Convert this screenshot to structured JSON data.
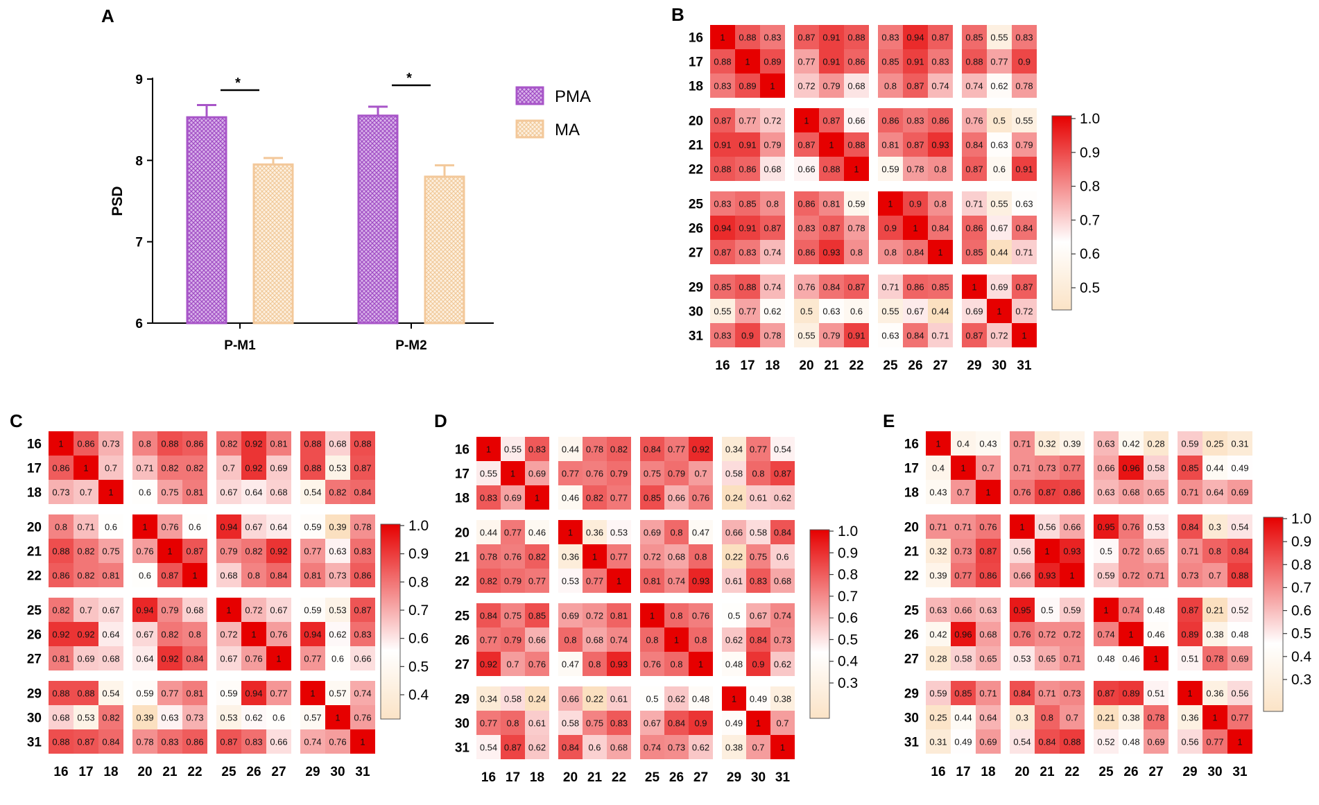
{
  "figure": {
    "panel_labels": [
      "A",
      "B",
      "C",
      "D",
      "E"
    ]
  },
  "chart_data": [
    {
      "panel": "A",
      "type": "bar",
      "categories": [
        "P-M1",
        "P-M2"
      ],
      "series": [
        {
          "name": "PMA",
          "values": [
            8.53,
            8.55
          ],
          "errors": [
            0.15,
            0.11
          ],
          "color": "#a855c8",
          "fill": "#c9a0dc"
        },
        {
          "name": "MA",
          "values": [
            7.95,
            7.8
          ],
          "errors": [
            0.08,
            0.14
          ],
          "color": "#f3c89a",
          "fill": "#fbe3c8"
        }
      ],
      "ylabel": "PSD",
      "ylim": [
        6,
        9
      ],
      "yticks": [
        "6",
        "7",
        "8",
        "9"
      ],
      "significance": [
        "*",
        "*"
      ]
    },
    {
      "panel": "B",
      "type": "heatmap",
      "labels": [
        "16",
        "17",
        "18",
        "20",
        "21",
        "22",
        "25",
        "26",
        "27",
        "29",
        "30",
        "31"
      ],
      "colorbar": {
        "range": [
          0.45,
          1.0
        ],
        "ticks": [
          "1.0",
          "0.9",
          "0.8",
          "0.7",
          "0.6",
          "0.5"
        ],
        "tick_values": [
          1.0,
          0.9,
          0.8,
          0.7,
          0.6,
          0.5
        ]
      },
      "matrix": [
        [
          1.0,
          0.88,
          0.83,
          0.87,
          0.91,
          0.88,
          0.83,
          0.94,
          0.87,
          0.85,
          0.55,
          0.83
        ],
        [
          0.88,
          1.0,
          0.89,
          0.77,
          0.91,
          0.86,
          0.85,
          0.91,
          0.83,
          0.88,
          0.77,
          0.9
        ],
        [
          0.83,
          0.89,
          1.0,
          0.72,
          0.79,
          0.68,
          0.8,
          0.87,
          0.74,
          0.74,
          0.62,
          0.78
        ],
        [
          0.87,
          0.77,
          0.72,
          1.0,
          0.87,
          0.66,
          0.86,
          0.83,
          0.86,
          0.76,
          0.5,
          0.55
        ],
        [
          0.91,
          0.91,
          0.79,
          0.87,
          1.0,
          0.88,
          0.81,
          0.87,
          0.93,
          0.84,
          0.63,
          0.79
        ],
        [
          0.88,
          0.86,
          0.68,
          0.66,
          0.88,
          1.0,
          0.59,
          0.78,
          0.8,
          0.87,
          0.6,
          0.91
        ],
        [
          0.83,
          0.85,
          0.8,
          0.86,
          0.81,
          0.59,
          1.0,
          0.9,
          0.8,
          0.71,
          0.55,
          0.63
        ],
        [
          0.94,
          0.91,
          0.87,
          0.83,
          0.87,
          0.78,
          0.9,
          1.0,
          0.84,
          0.86,
          0.67,
          0.84
        ],
        [
          0.87,
          0.83,
          0.74,
          0.86,
          0.93,
          0.8,
          0.8,
          0.84,
          1.0,
          0.85,
          0.44,
          0.71
        ],
        [
          0.85,
          0.88,
          0.74,
          0.76,
          0.84,
          0.87,
          0.71,
          0.86,
          0.85,
          1.0,
          0.69,
          0.87
        ],
        [
          0.55,
          0.77,
          0.62,
          0.5,
          0.63,
          0.6,
          0.55,
          0.67,
          0.44,
          0.69,
          1.0,
          0.72
        ],
        [
          0.83,
          0.9,
          0.78,
          0.55,
          0.79,
          0.91,
          0.63,
          0.84,
          0.71,
          0.87,
          0.72,
          1.0
        ]
      ]
    },
    {
      "panel": "C",
      "type": "heatmap",
      "labels": [
        "16",
        "17",
        "18",
        "20",
        "21",
        "22",
        "25",
        "26",
        "27",
        "29",
        "30",
        "31"
      ],
      "colorbar": {
        "range": [
          0.4,
          1.0
        ],
        "ticks": [
          "1.0",
          "0.9",
          "0.8",
          "0.7",
          "0.6",
          "0.5",
          "0.4"
        ],
        "tick_values": [
          1.0,
          0.9,
          0.8,
          0.7,
          0.6,
          0.5,
          0.4
        ]
      },
      "matrix": [
        [
          1.0,
          0.86,
          0.73,
          0.8,
          0.88,
          0.86,
          0.82,
          0.92,
          0.81,
          0.88,
          0.68,
          0.88
        ],
        [
          0.86,
          1.0,
          0.7,
          0.71,
          0.82,
          0.82,
          0.7,
          0.92,
          0.69,
          0.88,
          0.53,
          0.87
        ],
        [
          0.73,
          0.7,
          1.0,
          0.6,
          0.75,
          0.81,
          0.67,
          0.64,
          0.68,
          0.54,
          0.82,
          0.84
        ],
        [
          0.8,
          0.71,
          0.6,
          1.0,
          0.76,
          0.6,
          0.94,
          0.67,
          0.64,
          0.59,
          0.39,
          0.78
        ],
        [
          0.88,
          0.82,
          0.75,
          0.76,
          1.0,
          0.87,
          0.79,
          0.82,
          0.92,
          0.77,
          0.63,
          0.83
        ],
        [
          0.86,
          0.82,
          0.81,
          0.6,
          0.87,
          1.0,
          0.68,
          0.8,
          0.84,
          0.81,
          0.73,
          0.86
        ],
        [
          0.82,
          0.7,
          0.67,
          0.94,
          0.79,
          0.68,
          1.0,
          0.72,
          0.67,
          0.59,
          0.53,
          0.87
        ],
        [
          0.92,
          0.92,
          0.64,
          0.67,
          0.82,
          0.8,
          0.72,
          1.0,
          0.76,
          0.94,
          0.62,
          0.83
        ],
        [
          0.81,
          0.69,
          0.68,
          0.64,
          0.92,
          0.84,
          0.67,
          0.76,
          1.0,
          0.77,
          0.6,
          0.66
        ],
        [
          0.88,
          0.88,
          0.54,
          0.59,
          0.77,
          0.81,
          0.59,
          0.94,
          0.77,
          1.0,
          0.57,
          0.74
        ],
        [
          0.68,
          0.53,
          0.82,
          0.39,
          0.63,
          0.73,
          0.53,
          0.62,
          0.6,
          0.57,
          1.0,
          0.76
        ],
        [
          0.88,
          0.87,
          0.84,
          0.78,
          0.83,
          0.86,
          0.87,
          0.83,
          0.66,
          0.74,
          0.76,
          1.0
        ]
      ]
    },
    {
      "panel": "D",
      "type": "heatmap",
      "labels": [
        "16",
        "17",
        "18",
        "20",
        "21",
        "22",
        "25",
        "26",
        "27",
        "29",
        "30",
        "31"
      ],
      "colorbar": {
        "range": [
          0.25,
          1.0
        ],
        "ticks": [
          "1.0",
          "0.9",
          "0.8",
          "0.7",
          "0.6",
          "0.5",
          "0.4",
          "0.3"
        ],
        "tick_values": [
          1.0,
          0.9,
          0.8,
          0.7,
          0.6,
          0.5,
          0.4,
          0.3
        ]
      },
      "matrix": [
        [
          1.0,
          0.55,
          0.83,
          0.44,
          0.78,
          0.82,
          0.84,
          0.77,
          0.92,
          0.34,
          0.77,
          0.54
        ],
        [
          0.55,
          1.0,
          0.69,
          0.77,
          0.76,
          0.79,
          0.75,
          0.79,
          0.7,
          0.58,
          0.8,
          0.87
        ],
        [
          0.83,
          0.69,
          1.0,
          0.46,
          0.82,
          0.77,
          0.85,
          0.66,
          0.76,
          0.24,
          0.61,
          0.62
        ],
        [
          0.44,
          0.77,
          0.46,
          1.0,
          0.36,
          0.53,
          0.69,
          0.8,
          0.47,
          0.66,
          0.58,
          0.84
        ],
        [
          0.78,
          0.76,
          0.82,
          0.36,
          1.0,
          0.77,
          0.72,
          0.68,
          0.8,
          0.22,
          0.75,
          0.6
        ],
        [
          0.82,
          0.79,
          0.77,
          0.53,
          0.77,
          1.0,
          0.81,
          0.74,
          0.93,
          0.61,
          0.83,
          0.68
        ],
        [
          0.84,
          0.75,
          0.85,
          0.69,
          0.72,
          0.81,
          1.0,
          0.8,
          0.76,
          0.5,
          0.67,
          0.74
        ],
        [
          0.77,
          0.79,
          0.66,
          0.8,
          0.68,
          0.74,
          0.8,
          1.0,
          0.8,
          0.62,
          0.84,
          0.73
        ],
        [
          0.92,
          0.7,
          0.76,
          0.47,
          0.8,
          0.93,
          0.76,
          0.8,
          1.0,
          0.48,
          0.9,
          0.62
        ],
        [
          0.34,
          0.58,
          0.24,
          0.66,
          0.22,
          0.61,
          0.5,
          0.62,
          0.48,
          1.0,
          0.49,
          0.38
        ],
        [
          0.77,
          0.8,
          0.61,
          0.58,
          0.75,
          0.83,
          0.67,
          0.84,
          0.9,
          0.49,
          1.0,
          0.7
        ],
        [
          0.54,
          0.87,
          0.62,
          0.84,
          0.6,
          0.68,
          0.74,
          0.73,
          0.62,
          0.38,
          0.7,
          1.0
        ]
      ]
    },
    {
      "panel": "E",
      "type": "heatmap",
      "labels": [
        "16",
        "17",
        "18",
        "20",
        "21",
        "22",
        "25",
        "26",
        "27",
        "29",
        "30",
        "31"
      ],
      "colorbar": {
        "range": [
          0.21,
          1.0
        ],
        "ticks": [
          "1.0",
          "0.9",
          "0.8",
          "0.7",
          "0.6",
          "0.5",
          "0.4",
          "0.3"
        ],
        "tick_values": [
          1.0,
          0.9,
          0.8,
          0.7,
          0.6,
          0.5,
          0.4,
          0.3
        ]
      },
      "matrix": [
        [
          1.0,
          0.4,
          0.43,
          0.71,
          0.32,
          0.39,
          0.63,
          0.42,
          0.28,
          0.59,
          0.25,
          0.31
        ],
        [
          0.4,
          1.0,
          0.7,
          0.71,
          0.73,
          0.77,
          0.66,
          0.96,
          0.58,
          0.85,
          0.44,
          0.49
        ],
        [
          0.43,
          0.7,
          1.0,
          0.76,
          0.87,
          0.86,
          0.63,
          0.68,
          0.65,
          0.71,
          0.64,
          0.69
        ],
        [
          0.71,
          0.71,
          0.76,
          1.0,
          0.56,
          0.66,
          0.95,
          0.76,
          0.53,
          0.84,
          0.3,
          0.54
        ],
        [
          0.32,
          0.73,
          0.87,
          0.56,
          1.0,
          0.93,
          0.5,
          0.72,
          0.65,
          0.71,
          0.8,
          0.84
        ],
        [
          0.39,
          0.77,
          0.86,
          0.66,
          0.93,
          1.0,
          0.59,
          0.72,
          0.71,
          0.73,
          0.7,
          0.88
        ],
        [
          0.63,
          0.66,
          0.63,
          0.95,
          0.5,
          0.59,
          1.0,
          0.74,
          0.48,
          0.87,
          0.21,
          0.52
        ],
        [
          0.42,
          0.96,
          0.68,
          0.76,
          0.72,
          0.72,
          0.74,
          1.0,
          0.46,
          0.89,
          0.38,
          0.48
        ],
        [
          0.28,
          0.58,
          0.65,
          0.53,
          0.65,
          0.71,
          0.48,
          0.46,
          1.0,
          0.51,
          0.78,
          0.69
        ],
        [
          0.59,
          0.85,
          0.71,
          0.84,
          0.71,
          0.73,
          0.87,
          0.89,
          0.51,
          1.0,
          0.36,
          0.56
        ],
        [
          0.25,
          0.44,
          0.64,
          0.3,
          0.8,
          0.7,
          0.21,
          0.38,
          0.78,
          0.36,
          1.0,
          0.77
        ],
        [
          0.31,
          0.49,
          0.69,
          0.54,
          0.84,
          0.88,
          0.52,
          0.48,
          0.69,
          0.56,
          0.77,
          1.0
        ]
      ]
    }
  ]
}
